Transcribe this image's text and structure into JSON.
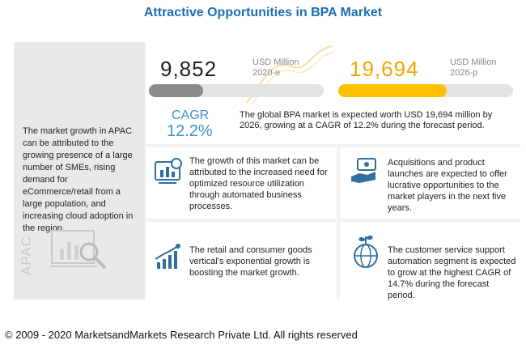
{
  "title": "Attractive Opportunities in BPA Market",
  "chart_data": {
    "type": "bar",
    "categories": [
      "2020-e",
      "2026-p"
    ],
    "values": [
      9852,
      19694
    ],
    "unit": "USD Million",
    "value_labels": [
      "9,852",
      "19,694"
    ],
    "cagr_label": "CAGR",
    "cagr_value": "12.2%",
    "colors": [
      "#8a8a8a",
      "#ffc000"
    ]
  },
  "summary": "The global BPA market is expected worth USD 19,694 million by 2026, growing at a CAGR of 12.2% during the forecast period.",
  "left_panel": {
    "region": "APAC",
    "text": "The market growth in APAC can be attributed to the growing presence of a large number of SMEs, rising demand for eCommerce/retail from a large population, and increasing cloud adoption in the region."
  },
  "insights": [
    {
      "icon": "analytics-icon",
      "text": "The growth of this market can be attributed to the increased need for optimized resource utilization through automated business processes."
    },
    {
      "icon": "money-hand-icon",
      "text": "Acquisitions and product launches are expected to offer lucrative opportunities to the market players in the next five years."
    },
    {
      "icon": "growth-chart-icon",
      "text": "The retail and consumer goods vertical's exponential growth is boosting the market growth."
    },
    {
      "icon": "globe-plant-icon",
      "text": "The customer service support automation segment is expected to grow at the highest CAGR of 14.7% during the forecast period."
    }
  ],
  "footer": "© 2009 - 2020 MarketsandMarkets Research Private Ltd. All rights reserved"
}
